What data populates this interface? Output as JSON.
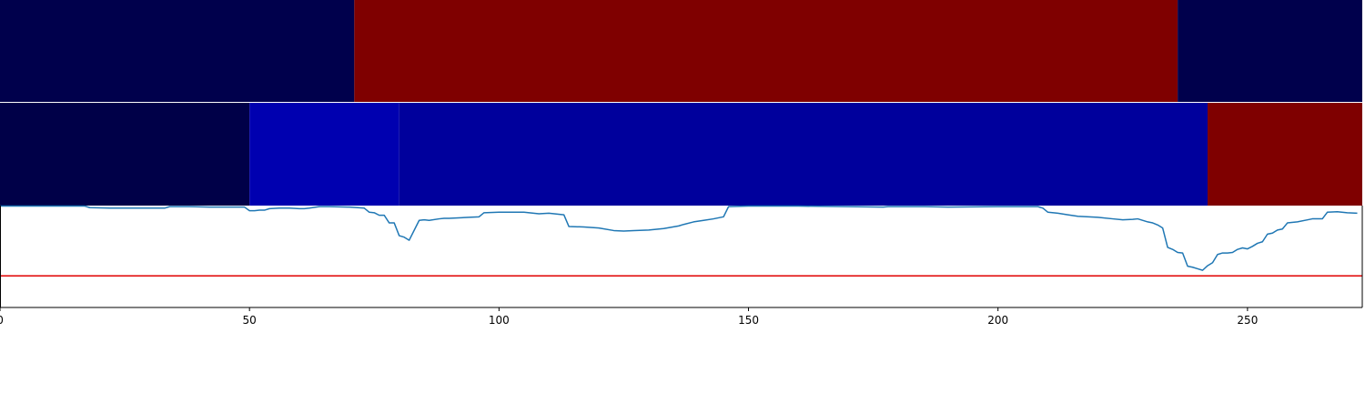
{
  "chart_data": [
    {
      "type": "heatmap",
      "title": "",
      "xlabel": "",
      "ylabel": "",
      "xlim": [
        0,
        273
      ],
      "segments": [
        {
          "start": 0,
          "end": 71,
          "color": "#00004c"
        },
        {
          "start": 71,
          "end": 236,
          "color": "#7f0000"
        },
        {
          "start": 236,
          "end": 273,
          "color": "#00004c"
        }
      ]
    },
    {
      "type": "heatmap",
      "title": "",
      "xlabel": "",
      "ylabel": "",
      "xlim": [
        0,
        273
      ],
      "segments": [
        {
          "start": 0,
          "end": 50,
          "color": "#000048"
        },
        {
          "start": 50,
          "end": 80,
          "color": "#0000b0"
        },
        {
          "start": 80,
          "end": 242,
          "color": "#00009c"
        },
        {
          "start": 242,
          "end": 273,
          "color": "#7f0000"
        }
      ]
    },
    {
      "type": "line",
      "title": "",
      "xlabel": "",
      "ylabel": "",
      "xlim": [
        0,
        273
      ],
      "ylim": [
        0,
        1
      ],
      "xticks": [
        0,
        50,
        100,
        150,
        200,
        250
      ],
      "grid": false,
      "threshold": {
        "y": 0.31,
        "color": "#e00000"
      },
      "series": [
        {
          "color": "#1f77b4",
          "x": [
            0,
            17,
            18,
            22,
            30,
            33,
            34,
            38,
            42,
            45,
            49,
            50,
            51,
            52,
            53,
            54,
            56,
            58,
            60,
            61,
            62,
            64,
            66,
            70,
            73,
            74,
            75,
            76,
            77,
            78,
            79,
            80,
            81,
            82,
            84,
            85,
            86,
            88,
            89,
            90,
            94,
            96,
            97,
            100,
            105,
            108,
            110,
            113,
            114,
            117,
            120,
            123,
            125,
            127,
            130,
            133,
            136,
            137,
            139,
            141,
            143,
            145,
            146,
            150,
            155,
            160,
            170,
            177,
            178,
            185,
            190,
            200,
            208,
            209,
            210,
            212,
            214,
            216,
            220,
            223,
            225,
            227,
            228,
            230,
            231,
            232,
            233,
            234,
            235,
            236,
            237,
            238,
            239,
            240,
            241,
            242,
            243,
            244,
            245,
            246,
            247,
            248,
            249,
            250,
            251,
            252,
            253,
            254,
            255,
            256,
            257,
            258,
            260,
            262,
            263,
            265,
            266,
            268,
            270,
            272
          ],
          "y": [
            0.995,
            0.995,
            0.98,
            0.975,
            0.975,
            0.975,
            0.99,
            0.99,
            0.985,
            0.985,
            0.985,
            0.95,
            0.95,
            0.955,
            0.955,
            0.97,
            0.975,
            0.975,
            0.97,
            0.97,
            0.975,
            0.99,
            0.99,
            0.985,
            0.975,
            0.935,
            0.93,
            0.905,
            0.905,
            0.83,
            0.83,
            0.705,
            0.69,
            0.66,
            0.855,
            0.86,
            0.855,
            0.87,
            0.875,
            0.875,
            0.885,
            0.89,
            0.93,
            0.935,
            0.935,
            0.92,
            0.925,
            0.91,
            0.795,
            0.79,
            0.78,
            0.755,
            0.75,
            0.755,
            0.76,
            0.775,
            0.8,
            0.815,
            0.84,
            0.855,
            0.87,
            0.89,
            0.99,
            0.995,
            0.995,
            0.995,
            0.99,
            0.985,
            0.99,
            0.99,
            0.985,
            0.99,
            0.99,
            0.975,
            0.935,
            0.925,
            0.91,
            0.895,
            0.885,
            0.87,
            0.86,
            0.865,
            0.87,
            0.84,
            0.83,
            0.81,
            0.78,
            0.59,
            0.57,
            0.54,
            0.535,
            0.405,
            0.395,
            0.38,
            0.365,
            0.41,
            0.44,
            0.52,
            0.535,
            0.535,
            0.54,
            0.57,
            0.585,
            0.575,
            0.6,
            0.63,
            0.645,
            0.72,
            0.73,
            0.76,
            0.77,
            0.83,
            0.84,
            0.86,
            0.87,
            0.87,
            0.935,
            0.94,
            0.93,
            0.925
          ]
        }
      ]
    }
  ]
}
